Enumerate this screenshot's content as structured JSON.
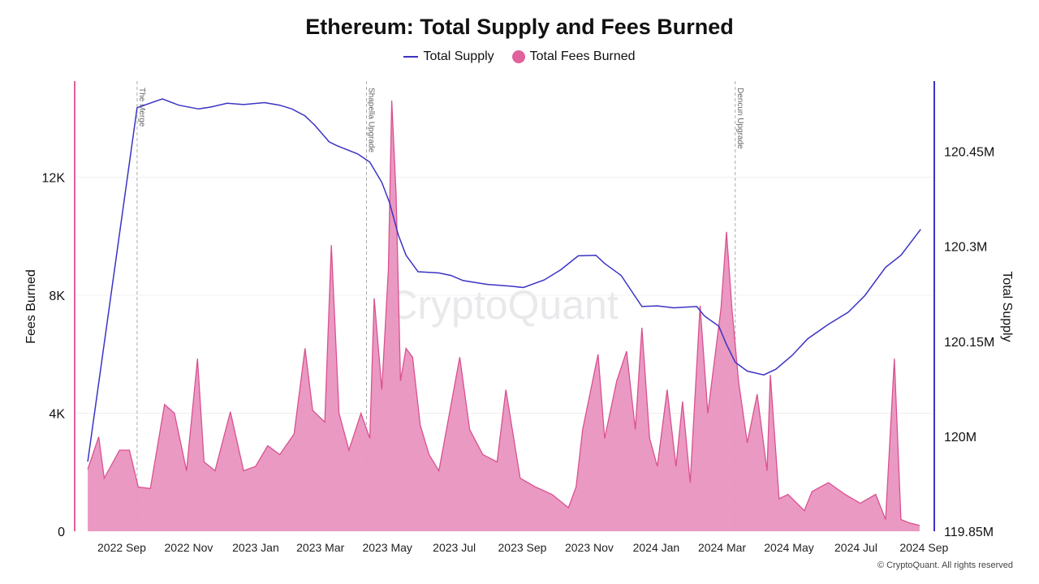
{
  "chart_data": {
    "type": "area+line",
    "title": "Ethereum: Total Supply and Fees Burned",
    "legend": {
      "placement": "top-center",
      "entries": [
        "Total Supply",
        "Total Fees Burned"
      ]
    },
    "watermark": "CryptoQuant",
    "copyright": "© CryptoQuant. All rights reserved",
    "grid": true,
    "colors": {
      "supply": "#3b33c4",
      "fees_line": "#d9518f",
      "fees_fill": "#e993bf",
      "left_axis": "#e0619c",
      "right_axis": "#3b33c4"
    },
    "x_axis": {
      "ticks": [
        "2022 Sep",
        "2022 Nov",
        "2023 Jan",
        "2023 Mar",
        "2023 May",
        "2023 Jul",
        "2023 Sep",
        "2023 Nov",
        "2024 Jan",
        "2024 Mar",
        "2024 May",
        "2024 Jul",
        "2024 Sep"
      ],
      "tick_dates": [
        "2022-09-01",
        "2022-11-01",
        "2023-01-01",
        "2023-03-01",
        "2023-05-01",
        "2023-07-01",
        "2023-09-01",
        "2023-11-01",
        "2024-01-01",
        "2024-03-01",
        "2024-05-01",
        "2024-07-01",
        "2024-09-01"
      ]
    },
    "y_left": {
      "label": "Fees Burned",
      "ticks": [
        "0",
        "4K",
        "8K",
        "12K"
      ],
      "tick_values": [
        0,
        4000,
        8000,
        12000
      ],
      "range": [
        0,
        15260
      ]
    },
    "y_right": {
      "label": "Total Supply",
      "ticks": [
        "119.85M",
        "120M",
        "120.15M",
        "120.3M",
        "120.45M"
      ],
      "tick_values": [
        119.85,
        120.0,
        120.15,
        120.3,
        120.45
      ],
      "range": [
        119.85,
        120.561
      ]
    },
    "events": [
      {
        "label": "The Merge",
        "date": "2022-09-15"
      },
      {
        "label": "Shapella Upgrade",
        "date": "2023-04-12"
      },
      {
        "label": "Dencun Upgrade",
        "date": "2024-03-13"
      }
    ],
    "series": [
      {
        "name": "Total Supply",
        "axis": "right",
        "unit": "M ETH",
        "points": [
          [
            "2022-08-01",
            119.96
          ],
          [
            "2022-09-15",
            120.519
          ],
          [
            "2022-10-08",
            120.533
          ],
          [
            "2022-10-23",
            120.523
          ],
          [
            "2022-11-10",
            120.517
          ],
          [
            "2022-11-21",
            120.52
          ],
          [
            "2022-12-06",
            120.526
          ],
          [
            "2022-12-21",
            120.524
          ],
          [
            "2023-01-09",
            120.527
          ],
          [
            "2023-01-23",
            120.523
          ],
          [
            "2023-02-03",
            120.517
          ],
          [
            "2023-02-15",
            120.506
          ],
          [
            "2023-02-24",
            120.491
          ],
          [
            "2023-03-09",
            120.465
          ],
          [
            "2023-03-16",
            120.459
          ],
          [
            "2023-04-04",
            120.446
          ],
          [
            "2023-04-15",
            120.433
          ],
          [
            "2023-04-26",
            120.401
          ],
          [
            "2023-05-03",
            120.369
          ],
          [
            "2023-05-11",
            120.318
          ],
          [
            "2023-05-18",
            120.286
          ],
          [
            "2023-05-29",
            120.26
          ],
          [
            "2023-06-17",
            120.258
          ],
          [
            "2023-06-28",
            120.254
          ],
          [
            "2023-07-09",
            120.246
          ],
          [
            "2023-07-31",
            120.24
          ],
          [
            "2023-08-22",
            120.237
          ],
          [
            "2023-09-02",
            120.235
          ],
          [
            "2023-09-21",
            120.247
          ],
          [
            "2023-10-06",
            120.263
          ],
          [
            "2023-10-22",
            120.285
          ],
          [
            "2023-11-07",
            120.286
          ],
          [
            "2023-11-15",
            120.273
          ],
          [
            "2023-11-30",
            120.254
          ],
          [
            "2023-12-19",
            120.205
          ],
          [
            "2024-01-02",
            120.206
          ],
          [
            "2024-01-17",
            120.203
          ],
          [
            "2024-02-07",
            120.205
          ],
          [
            "2024-02-14",
            120.19
          ],
          [
            "2024-02-27",
            120.174
          ],
          [
            "2024-03-05",
            120.145
          ],
          [
            "2024-03-13",
            120.117
          ],
          [
            "2024-03-24",
            120.103
          ],
          [
            "2024-04-08",
            120.097
          ],
          [
            "2024-04-19",
            120.106
          ],
          [
            "2024-05-04",
            120.128
          ],
          [
            "2024-05-18",
            120.154
          ],
          [
            "2024-06-06",
            120.177
          ],
          [
            "2024-06-24",
            120.196
          ],
          [
            "2024-07-09",
            120.222
          ],
          [
            "2024-07-28",
            120.267
          ],
          [
            "2024-08-11",
            120.286
          ],
          [
            "2024-08-29",
            120.327
          ]
        ]
      },
      {
        "name": "Total Fees Burned",
        "axis": "left",
        "unit": "ETH",
        "points": [
          [
            "2022-08-01",
            2100
          ],
          [
            "2022-08-11",
            3200
          ],
          [
            "2022-08-16",
            1800
          ],
          [
            "2022-08-30",
            2750
          ],
          [
            "2022-09-08",
            2750
          ],
          [
            "2022-09-16",
            1500
          ],
          [
            "2022-09-27",
            1450
          ],
          [
            "2022-10-10",
            4300
          ],
          [
            "2022-10-19",
            4000
          ],
          [
            "2022-10-30",
            2050
          ],
          [
            "2022-11-09",
            5850
          ],
          [
            "2022-11-15",
            2350
          ],
          [
            "2022-11-25",
            2050
          ],
          [
            "2022-12-09",
            4050
          ],
          [
            "2022-12-21",
            2050
          ],
          [
            "2023-01-01",
            2200
          ],
          [
            "2023-01-12",
            2900
          ],
          [
            "2023-01-23",
            2600
          ],
          [
            "2023-02-05",
            3300
          ],
          [
            "2023-02-15",
            6200
          ],
          [
            "2023-02-22",
            4100
          ],
          [
            "2023-03-05",
            3700
          ],
          [
            "2023-03-11",
            9700
          ],
          [
            "2023-03-18",
            4000
          ],
          [
            "2023-03-27",
            2750
          ],
          [
            "2023-04-07",
            4000
          ],
          [
            "2023-04-15",
            3150
          ],
          [
            "2023-04-19",
            7900
          ],
          [
            "2023-04-26",
            4800
          ],
          [
            "2023-05-02",
            8900
          ],
          [
            "2023-05-05",
            14600
          ],
          [
            "2023-05-09",
            11400
          ],
          [
            "2023-05-13",
            5100
          ],
          [
            "2023-05-18",
            6200
          ],
          [
            "2023-05-24",
            5900
          ],
          [
            "2023-05-31",
            3600
          ],
          [
            "2023-06-08",
            2600
          ],
          [
            "2023-06-17",
            2050
          ],
          [
            "2023-07-06",
            5900
          ],
          [
            "2023-07-15",
            3450
          ],
          [
            "2023-07-27",
            2600
          ],
          [
            "2023-08-09",
            2350
          ],
          [
            "2023-08-17",
            4800
          ],
          [
            "2023-08-30",
            1800
          ],
          [
            "2023-09-13",
            1500
          ],
          [
            "2023-09-28",
            1250
          ],
          [
            "2023-10-13",
            800
          ],
          [
            "2023-10-20",
            1500
          ],
          [
            "2023-10-26",
            3450
          ],
          [
            "2023-11-09",
            6000
          ],
          [
            "2023-11-15",
            3150
          ],
          [
            "2023-11-26",
            5100
          ],
          [
            "2023-12-05",
            6100
          ],
          [
            "2023-12-13",
            3450
          ],
          [
            "2023-12-19",
            6900
          ],
          [
            "2023-12-26",
            3150
          ],
          [
            "2024-01-02",
            2200
          ],
          [
            "2024-01-11",
            4800
          ],
          [
            "2024-01-19",
            2200
          ],
          [
            "2024-01-25",
            4400
          ],
          [
            "2024-02-01",
            1650
          ],
          [
            "2024-02-10",
            7650
          ],
          [
            "2024-02-17",
            4000
          ],
          [
            "2024-02-29",
            7550
          ],
          [
            "2024-03-05",
            10150
          ],
          [
            "2024-03-10",
            7550
          ],
          [
            "2024-03-16",
            5100
          ],
          [
            "2024-03-24",
            3000
          ],
          [
            "2024-04-02",
            4650
          ],
          [
            "2024-04-11",
            2050
          ],
          [
            "2024-04-14",
            5300
          ],
          [
            "2024-04-22",
            1100
          ],
          [
            "2024-04-30",
            1250
          ],
          [
            "2024-05-15",
            700
          ],
          [
            "2024-05-22",
            1350
          ],
          [
            "2024-06-06",
            1650
          ],
          [
            "2024-06-21",
            1250
          ],
          [
            "2024-07-05",
            950
          ],
          [
            "2024-07-19",
            1250
          ],
          [
            "2024-07-28",
            400
          ],
          [
            "2024-08-05",
            5850
          ],
          [
            "2024-08-11",
            400
          ],
          [
            "2024-08-19",
            280
          ],
          [
            "2024-08-28",
            200
          ]
        ]
      }
    ]
  }
}
